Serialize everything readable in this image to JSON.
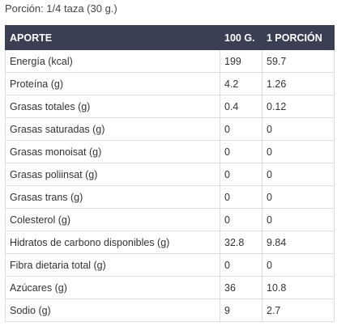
{
  "portion_text": "Porción: 1/4 taza (30 g.)",
  "colors": {
    "header_bg": "#3b3f54",
    "header_text": "#ffffff",
    "border": "#dcdcdc"
  },
  "table": {
    "headers": [
      "APORTE",
      "100 G.",
      "1 PORCIÓN"
    ],
    "rows": [
      [
        "Energía (kcal)",
        "199",
        "59.7"
      ],
      [
        "Proteína (g)",
        "4.2",
        "1.26"
      ],
      [
        "Grasas totales (g)",
        "0.4",
        "0.12"
      ],
      [
        "Grasas saturadas (g)",
        "0",
        "0"
      ],
      [
        "Grasas monoisat (g)",
        "0",
        "0"
      ],
      [
        "Grasas poliinsat (g)",
        "0",
        "0"
      ],
      [
        "Grasas trans (g)",
        "0",
        "0"
      ],
      [
        "Colesterol (g)",
        "0",
        "0"
      ],
      [
        "Hidratos de carbono disponibles (g)",
        "32.8",
        "9.84"
      ],
      [
        "Fibra dietaria total (g)",
        "0",
        "0"
      ],
      [
        "Azúcares (g)",
        "36",
        "10.8"
      ],
      [
        "Sodio (g)",
        "9",
        "2.7"
      ]
    ]
  }
}
